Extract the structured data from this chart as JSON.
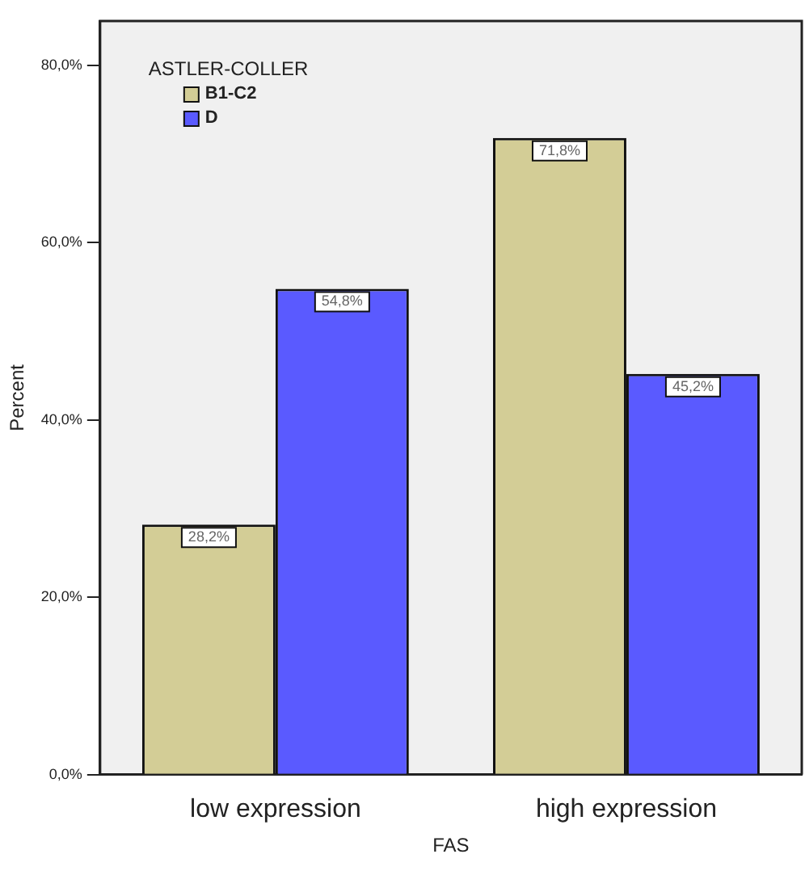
{
  "chart_data": {
    "type": "bar",
    "xlabel": "FAS",
    "ylabel": "Percent",
    "legend_title": "ASTLER-COLLER",
    "legend": "top left",
    "grid": false,
    "categories": [
      "low expression",
      "high expression"
    ],
    "series": [
      {
        "name": "B1-C2",
        "color": "#d3cd96",
        "values": [
          28.2,
          71.8
        ],
        "value_labels": [
          "28,2%",
          "71,8%"
        ]
      },
      {
        "name": "D",
        "color": "#5a5aff",
        "values": [
          54.8,
          45.2
        ],
        "value_labels": [
          "54,8%",
          "45,2%"
        ]
      }
    ],
    "ylim": [
      0,
      85
    ],
    "yticks": [
      {
        "value": 0,
        "label": "0,0%"
      },
      {
        "value": 20,
        "label": "20,0%"
      },
      {
        "value": 40,
        "label": "40,0%"
      },
      {
        "value": 60,
        "label": "60,0%"
      },
      {
        "value": 80,
        "label": "80,0%"
      }
    ]
  }
}
